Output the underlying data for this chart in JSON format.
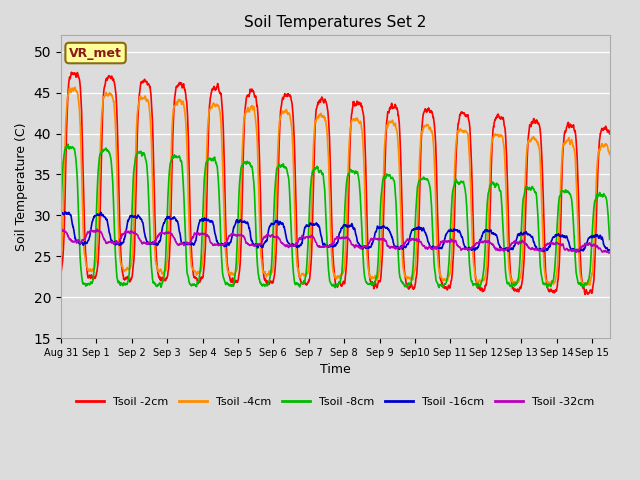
{
  "title": "Soil Temperatures Set 2",
  "xlabel": "Time",
  "ylabel": "Soil Temperature (C)",
  "ylim": [
    15,
    52
  ],
  "yticks": [
    15,
    20,
    25,
    30,
    35,
    40,
    45,
    50
  ],
  "background_color": "#dcdcdc",
  "plot_bg_color": "#dcdcdc",
  "annotation_text": "VR_met",
  "annotation_box_facecolor": "#ffff99",
  "annotation_box_edgecolor": "#8B6914",
  "annotation_text_color": "#8B1A1A",
  "lines": [
    {
      "label": "Tsoil -2cm",
      "color": "#ff0000",
      "lw": 1.2
    },
    {
      "label": "Tsoil -4cm",
      "color": "#ff8c00",
      "lw": 1.2
    },
    {
      "label": "Tsoil -8cm",
      "color": "#00bb00",
      "lw": 1.2
    },
    {
      "label": "Tsoil -16cm",
      "color": "#0000cc",
      "lw": 1.2
    },
    {
      "label": "Tsoil -32cm",
      "color": "#bb00bb",
      "lw": 1.2
    }
  ],
  "num_days": 15.5,
  "samples_per_day": 144,
  "tick_positions": [
    0,
    1,
    2,
    3,
    4,
    5,
    6,
    7,
    8,
    9,
    10,
    11,
    12,
    13,
    14,
    15
  ],
  "tick_labels": [
    "Aug 31",
    "Sep 1",
    "Sep 2",
    "Sep 3",
    "Sep 4",
    "Sep 5",
    "Sep 6",
    "Sep 7",
    "Sep 8",
    "Sep 9",
    "Sep10",
    "Sep 11",
    "Sep 12",
    "Sep 13",
    "Sep 14",
    "Sep 15"
  ]
}
